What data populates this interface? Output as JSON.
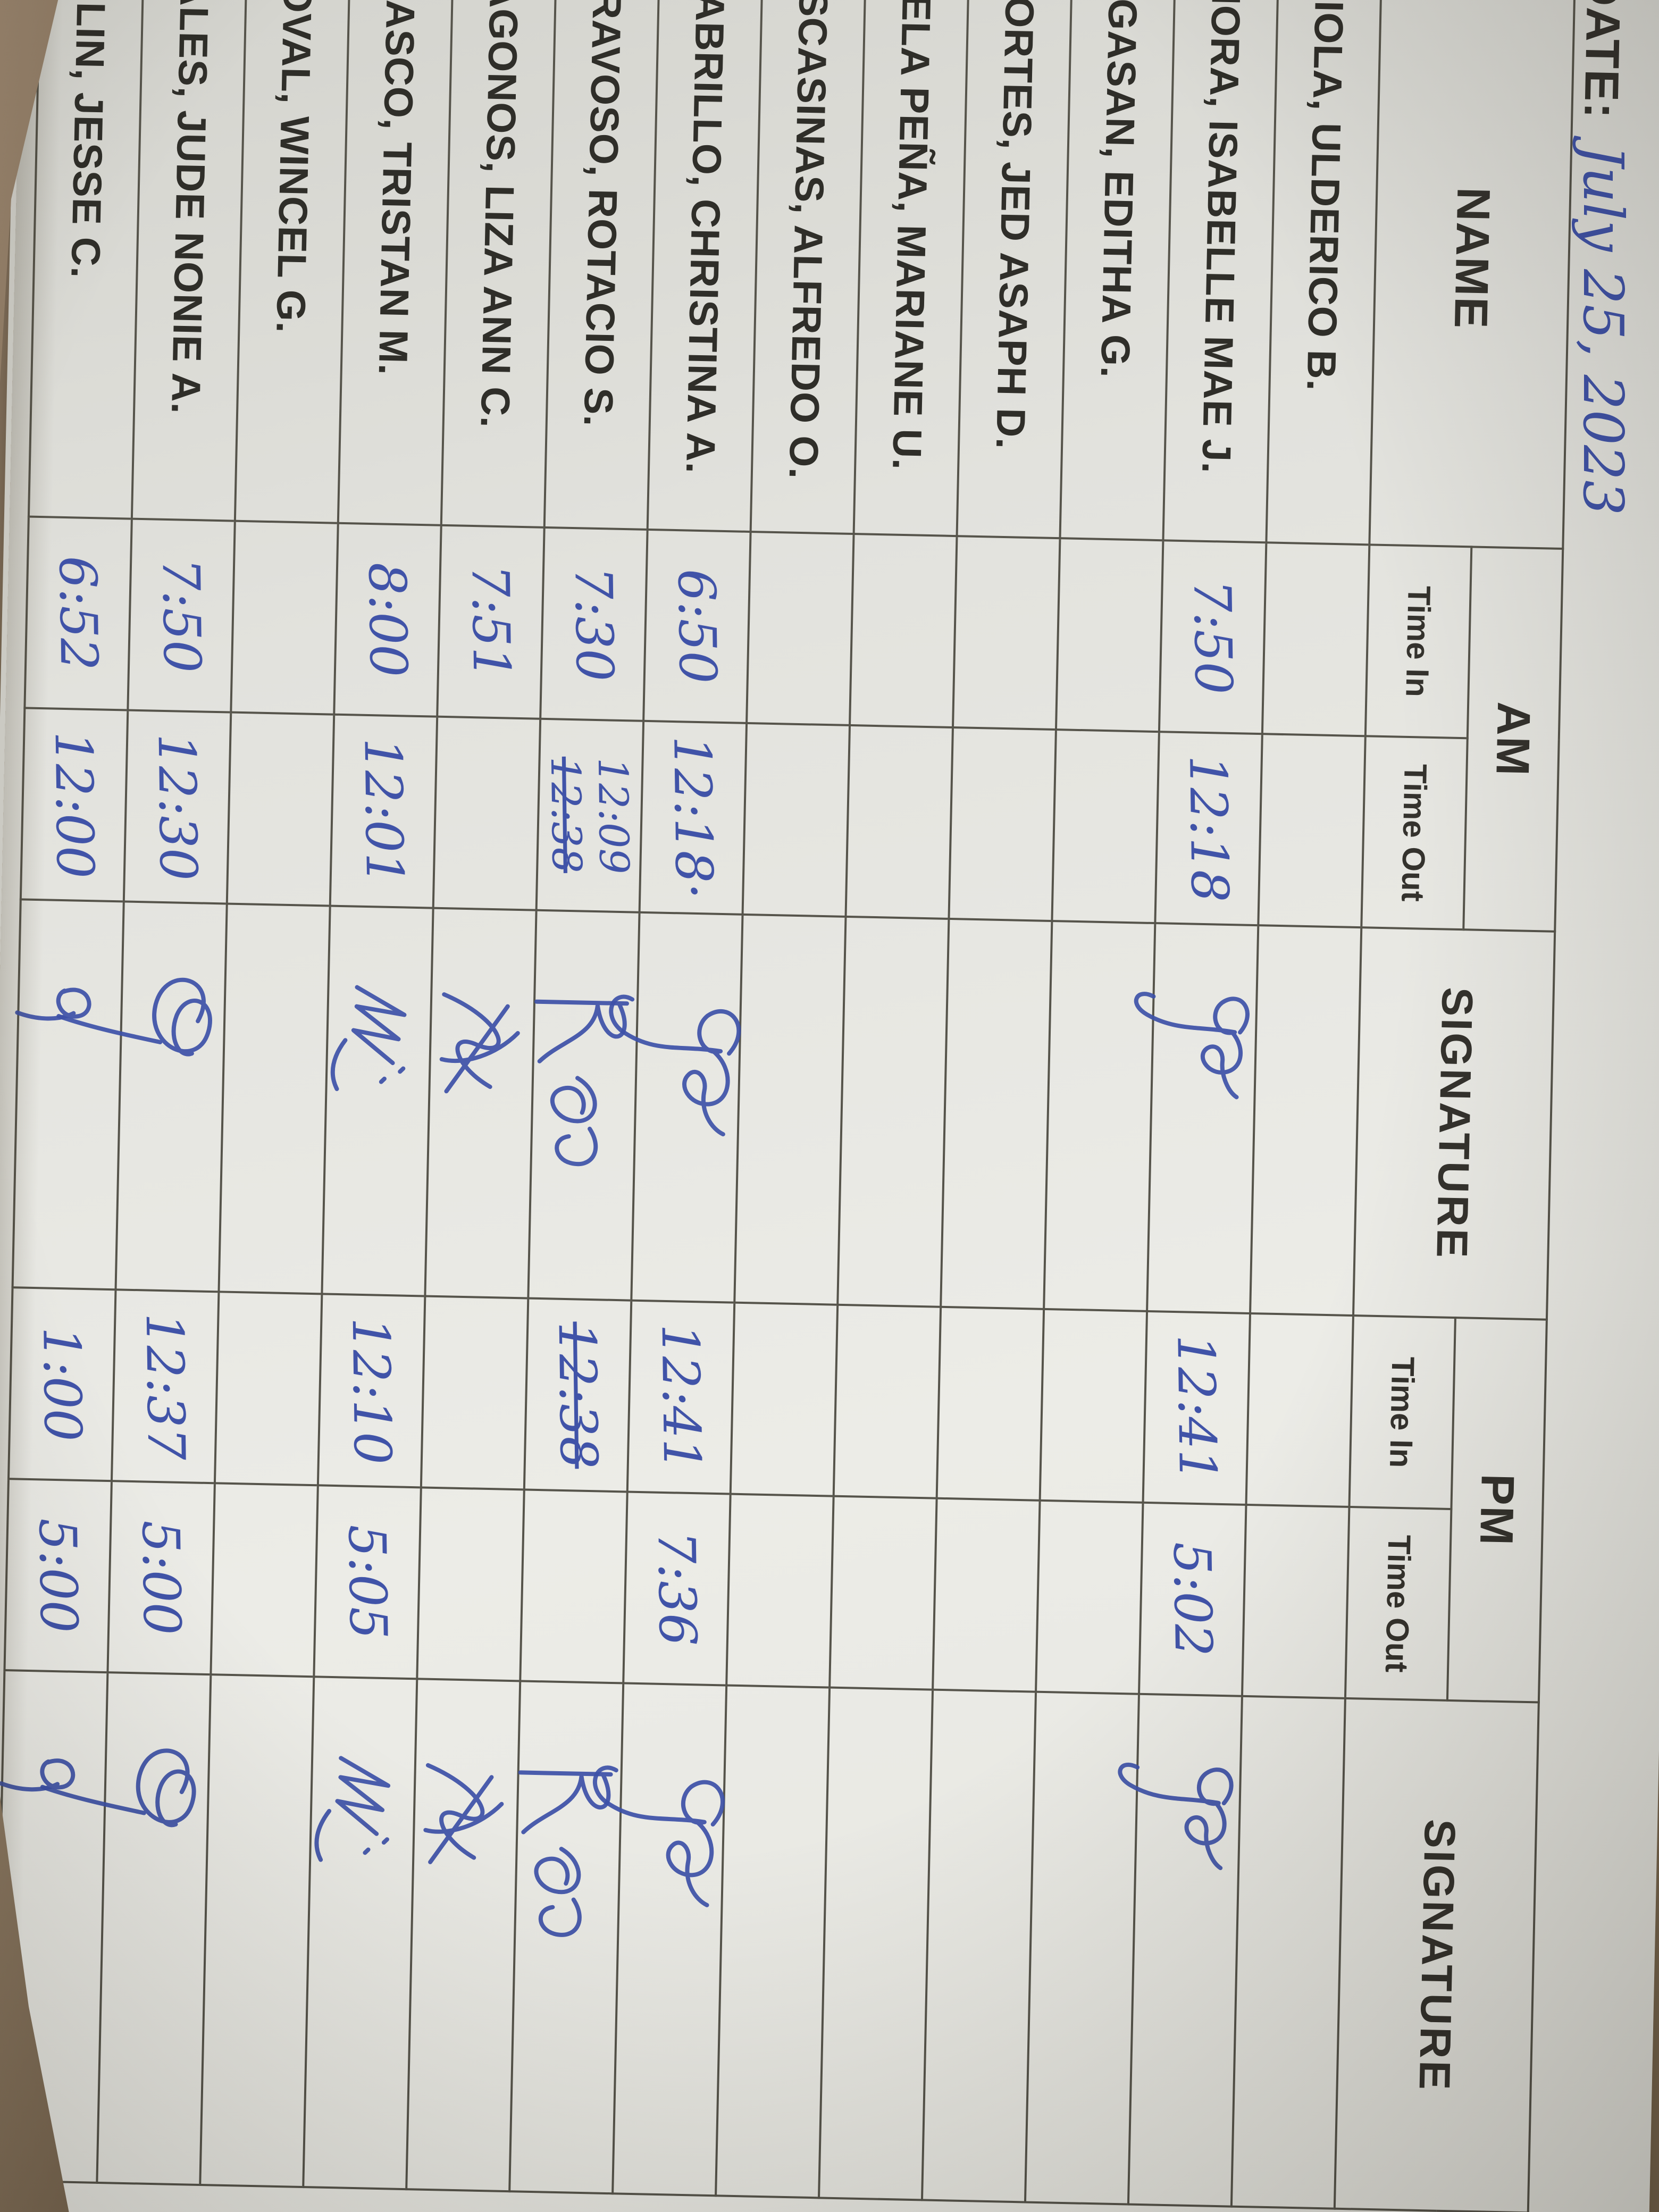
{
  "photo": {
    "paper_color": "#e7e7e2",
    "ink_color": "#4053a8",
    "line_color": "#56544b",
    "background_color": "#927f67"
  },
  "date": {
    "label": "DATE:",
    "value": "July 25, 2023"
  },
  "table": {
    "headers": {
      "name": "NAME",
      "am": "AM",
      "pm": "PM",
      "signature_am": "SIGNATURE",
      "signature_pm": "SIGNATURE",
      "time_in": "Time In",
      "time_out": "Time Out"
    },
    "rows": [
      {
        "name": "VIOLA, ULDERICO B.",
        "am_in": "",
        "am_out": "",
        "am_out2": "",
        "sig": "",
        "pm_in": "",
        "pm_in_struck": false,
        "pm_out": ""
      },
      {
        "name": "MORA, ISABELLE MAE J.",
        "am_in": "7:50",
        "am_out": "12:18",
        "am_out2": "",
        "sig": "mora",
        "pm_in": "12:41",
        "pm_in_struck": false,
        "pm_out": "5:02"
      },
      {
        "name": "AGASAN, EDITHA G.",
        "am_in": "",
        "am_out": "",
        "am_out2": "",
        "sig": "",
        "pm_in": "",
        "pm_in_struck": false,
        "pm_out": ""
      },
      {
        "name": "CORTES, JED ASAPH D.",
        "am_in": "",
        "am_out": "",
        "am_out2": "",
        "sig": "",
        "pm_in": "",
        "pm_in_struck": false,
        "pm_out": ""
      },
      {
        "name": "DELA PEÑA, MARIANE U.",
        "am_in": "",
        "am_out": "",
        "am_out2": "",
        "sig": "",
        "pm_in": "",
        "pm_in_struck": false,
        "pm_out": ""
      },
      {
        "name": "ESCASINAS, ALFREDO O.",
        "am_in": "",
        "am_out": "",
        "am_out2": "",
        "sig": "",
        "pm_in": "",
        "pm_in_struck": false,
        "pm_out": ""
      },
      {
        "name": "GABRILLO, CHRISTINA A.",
        "am_in": "6:50",
        "am_out": "12:18·",
        "am_out2": "",
        "sig": "gabrillo",
        "pm_in": "12:41",
        "pm_in_struck": false,
        "pm_out": "7:36"
      },
      {
        "name": "GRAVOSO, ROTACIO S.",
        "am_in": "7:30",
        "am_out": "12:09",
        "am_out2": "12:38",
        "sig": "gravoso",
        "pm_in": "12:38",
        "pm_in_struck": true,
        "pm_out": ""
      },
      {
        "name": "JAGONOS, LIZA ANN C.",
        "am_in": "7:51",
        "am_out": "",
        "am_out2": "",
        "sig": "jagonos",
        "pm_in": "",
        "pm_in_struck": false,
        "pm_out": ""
      },
      {
        "name": "MIASCO, TRISTAN M.",
        "am_in": "8:00",
        "am_out": "12:01",
        "am_out2": "",
        "sig": "miasco",
        "pm_in": "12:10",
        "pm_in_struck": false,
        "pm_out": "5:05"
      },
      {
        "name": "NOVAL, WINCEL G.",
        "am_in": "",
        "am_out": "",
        "am_out2": "",
        "sig": "",
        "pm_in": "",
        "pm_in_struck": false,
        "pm_out": ""
      },
      {
        "name": "SALES, JUDE NONIE A.",
        "am_in": "7:50",
        "am_out": "12:30",
        "am_out2": "",
        "sig": "sales",
        "pm_in": "12:37",
        "pm_in_struck": false,
        "pm_out": "5:00"
      },
      {
        "name": "TULIN, JESSE C.",
        "am_in": "6:52",
        "am_out": "12:00",
        "am_out2": "",
        "sig": "tulin",
        "pm_in": "1:00",
        "pm_in_struck": false,
        "pm_out": "5:00"
      }
    ]
  }
}
